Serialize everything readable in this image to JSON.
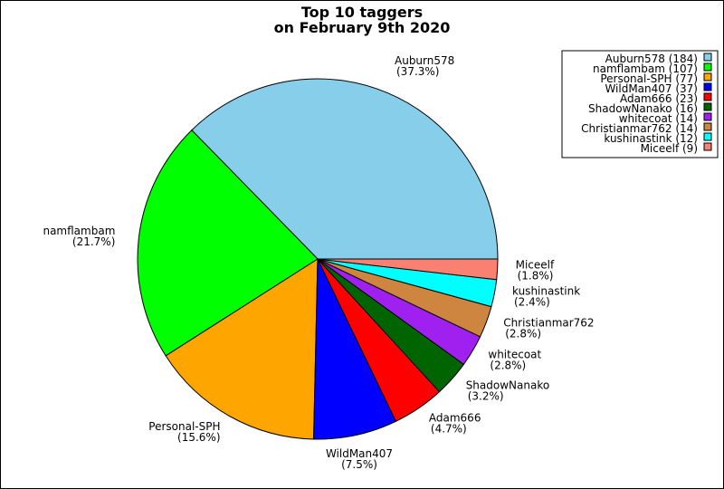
{
  "chart_data": {
    "type": "pie",
    "title": [
      "Top 10 taggers",
      "on February 9th 2020"
    ],
    "slices": [
      {
        "name": "Auburn578",
        "value": 184,
        "percent_label": "(37.3%)",
        "legend_label": "Auburn578 (184)",
        "color": "#87ceeb"
      },
      {
        "name": "namflambam",
        "value": 107,
        "percent_label": "(21.7%)",
        "legend_label": "namflambam (107)",
        "color": "#00ff00"
      },
      {
        "name": "Personal-SPH",
        "value": 77,
        "percent_label": "(15.6%)",
        "legend_label": "Personal-SPH (77)",
        "color": "#ffa500"
      },
      {
        "name": "WildMan407",
        "value": 37,
        "percent_label": "(7.5%)",
        "legend_label": "WildMan407 (37)",
        "color": "#0000ff"
      },
      {
        "name": "Adam666",
        "value": 23,
        "percent_label": "(4.7%)",
        "legend_label": "Adam666 (23)",
        "color": "#ff0000"
      },
      {
        "name": "ShadowNanako",
        "value": 16,
        "percent_label": "(3.2%)",
        "legend_label": "ShadowNanako (16)",
        "color": "#006400"
      },
      {
        "name": "whitecoat",
        "value": 14,
        "percent_label": "(2.8%)",
        "legend_label": "whitecoat (14)",
        "color": "#a020f0"
      },
      {
        "name": "Christianmar762",
        "value": 14,
        "percent_label": "(2.8%)",
        "legend_label": "Christianmar762 (14)",
        "color": "#cd853f"
      },
      {
        "name": "kushinastink",
        "value": 12,
        "percent_label": "(2.4%)",
        "legend_label": "kushinastink (12)",
        "color": "#00ffff"
      },
      {
        "name": "Miceelf",
        "value": 9,
        "percent_label": "(1.8%)",
        "legend_label": "Miceelf (9)",
        "color": "#fa8072"
      }
    ],
    "start_angle_deg": 0,
    "direction": "counterclockwise",
    "legend_position": "top-right"
  }
}
